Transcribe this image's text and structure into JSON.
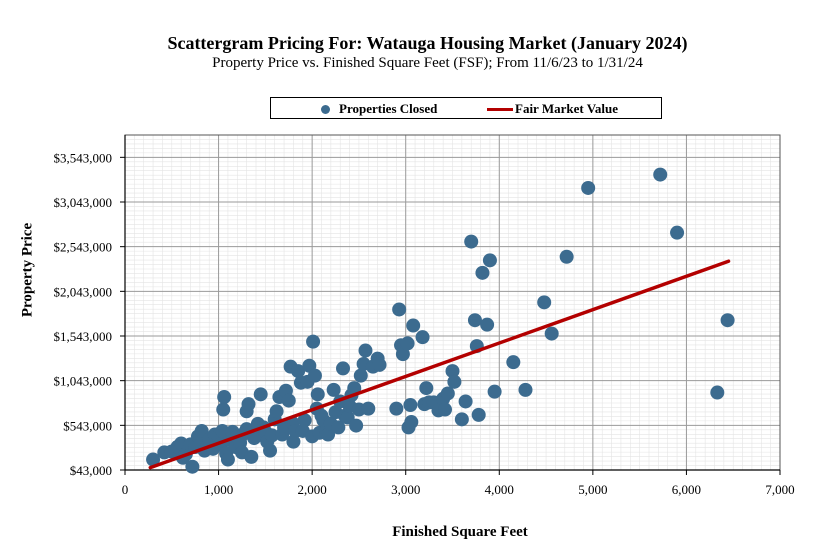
{
  "chart_data": {
    "type": "scatter",
    "title": "Scattergram Pricing For: Watauga Housing Market (January 2024)",
    "subtitle": "Property Price vs. Finished Square Feet (FSF); From 11/6/23 to 1/31/24",
    "xlabel": "Finished Square Feet",
    "ylabel": "Property Price",
    "xlim": [
      0,
      7000
    ],
    "ylim": [
      43000,
      3793000
    ],
    "x_ticks": [
      0,
      1000,
      2000,
      3000,
      4000,
      5000,
      6000,
      7000
    ],
    "x_tick_labels": [
      "0",
      "1,000",
      "2,000",
      "3,000",
      "4,000",
      "5,000",
      "6,000",
      "7,000"
    ],
    "y_ticks": [
      43000,
      543000,
      1043000,
      1543000,
      2043000,
      2543000,
      3043000,
      3543000
    ],
    "y_tick_labels": [
      "$43,000",
      "$543,000",
      "$1,043,000",
      "$1,543,000",
      "$2,043,000",
      "$2,543,000",
      "$3,043,000",
      "$3,543,000"
    ],
    "grid": true,
    "legend_position": "top",
    "legend": [
      "Properties Closed",
      "Fair Market Value"
    ],
    "colors": {
      "points": "#3c6b8f",
      "line": "#b30000"
    },
    "series": [
      {
        "name": "Properties Closed",
        "type": "scatter",
        "points": [
          [
            300,
            160000
          ],
          [
            420,
            240000
          ],
          [
            500,
            250000
          ],
          [
            560,
            300000
          ],
          [
            600,
            340000
          ],
          [
            620,
            180000
          ],
          [
            650,
            220000
          ],
          [
            700,
            330000
          ],
          [
            720,
            80000
          ],
          [
            750,
            300000
          ],
          [
            780,
            420000
          ],
          [
            820,
            480000
          ],
          [
            850,
            260000
          ],
          [
            880,
            330000
          ],
          [
            900,
            380000
          ],
          [
            940,
            280000
          ],
          [
            960,
            440000
          ],
          [
            1000,
            420000
          ],
          [
            1020,
            330000
          ],
          [
            1040,
            480000
          ],
          [
            1050,
            720000
          ],
          [
            1060,
            860000
          ],
          [
            1080,
            230000
          ],
          [
            1100,
            160000
          ],
          [
            1120,
            380000
          ],
          [
            1150,
            470000
          ],
          [
            1180,
            300000
          ],
          [
            1200,
            420000
          ],
          [
            1230,
            350000
          ],
          [
            1250,
            240000
          ],
          [
            1270,
            450000
          ],
          [
            1300,
            500000
          ],
          [
            1300,
            700000
          ],
          [
            1320,
            780000
          ],
          [
            1350,
            190000
          ],
          [
            1380,
            400000
          ],
          [
            1400,
            420000
          ],
          [
            1420,
            560000
          ],
          [
            1450,
            890000
          ],
          [
            1480,
            520000
          ],
          [
            1500,
            470000
          ],
          [
            1520,
            360000
          ],
          [
            1550,
            260000
          ],
          [
            1570,
            430000
          ],
          [
            1600,
            610000
          ],
          [
            1620,
            700000
          ],
          [
            1650,
            860000
          ],
          [
            1680,
            440000
          ],
          [
            1700,
            520000
          ],
          [
            1720,
            930000
          ],
          [
            1750,
            820000
          ],
          [
            1770,
            1200000
          ],
          [
            1790,
            570000
          ],
          [
            1800,
            360000
          ],
          [
            1820,
            480000
          ],
          [
            1850,
            1150000
          ],
          [
            1880,
            1020000
          ],
          [
            1900,
            480000
          ],
          [
            1920,
            600000
          ],
          [
            1950,
            1030000
          ],
          [
            1970,
            1210000
          ],
          [
            2000,
            420000
          ],
          [
            2010,
            1480000
          ],
          [
            2030,
            1100000
          ],
          [
            2050,
            730000
          ],
          [
            2060,
            890000
          ],
          [
            2080,
            460000
          ],
          [
            2100,
            650000
          ],
          [
            2120,
            600000
          ],
          [
            2150,
            480000
          ],
          [
            2170,
            440000
          ],
          [
            2200,
            560000
          ],
          [
            2230,
            940000
          ],
          [
            2250,
            690000
          ],
          [
            2280,
            520000
          ],
          [
            2300,
            810000
          ],
          [
            2330,
            1180000
          ],
          [
            2350,
            650000
          ],
          [
            2380,
            630000
          ],
          [
            2400,
            760000
          ],
          [
            2420,
            880000
          ],
          [
            2450,
            960000
          ],
          [
            2470,
            540000
          ],
          [
            2500,
            720000
          ],
          [
            2520,
            1100000
          ],
          [
            2550,
            1230000
          ],
          [
            2570,
            1380000
          ],
          [
            2600,
            730000
          ],
          [
            2650,
            1200000
          ],
          [
            2700,
            1290000
          ],
          [
            2720,
            1220000
          ],
          [
            2900,
            730000
          ],
          [
            2930,
            1840000
          ],
          [
            2950,
            1440000
          ],
          [
            2970,
            1340000
          ],
          [
            3020,
            1460000
          ],
          [
            3030,
            520000
          ],
          [
            3050,
            770000
          ],
          [
            3060,
            580000
          ],
          [
            3080,
            1660000
          ],
          [
            3180,
            1530000
          ],
          [
            3200,
            780000
          ],
          [
            3220,
            960000
          ],
          [
            3250,
            800000
          ],
          [
            3300,
            800000
          ],
          [
            3350,
            710000
          ],
          [
            3400,
            840000
          ],
          [
            3420,
            720000
          ],
          [
            3450,
            900000
          ],
          [
            3500,
            1150000
          ],
          [
            3520,
            1030000
          ],
          [
            3600,
            610000
          ],
          [
            3640,
            810000
          ],
          [
            3700,
            2600000
          ],
          [
            3740,
            1720000
          ],
          [
            3760,
            1430000
          ],
          [
            3780,
            660000
          ],
          [
            3820,
            2250000
          ],
          [
            3870,
            1670000
          ],
          [
            3900,
            2390000
          ],
          [
            3950,
            920000
          ],
          [
            4150,
            1250000
          ],
          [
            4280,
            940000
          ],
          [
            4480,
            1920000
          ],
          [
            4560,
            1570000
          ],
          [
            4720,
            2430000
          ],
          [
            4950,
            3200000
          ],
          [
            5720,
            3350000
          ],
          [
            5900,
            2700000
          ],
          [
            6330,
            910000
          ],
          [
            6440,
            1720000
          ]
        ]
      },
      {
        "name": "Fair Market Value",
        "type": "line",
        "points": [
          [
            270,
            70000
          ],
          [
            6450,
            2380000
          ]
        ]
      }
    ]
  }
}
